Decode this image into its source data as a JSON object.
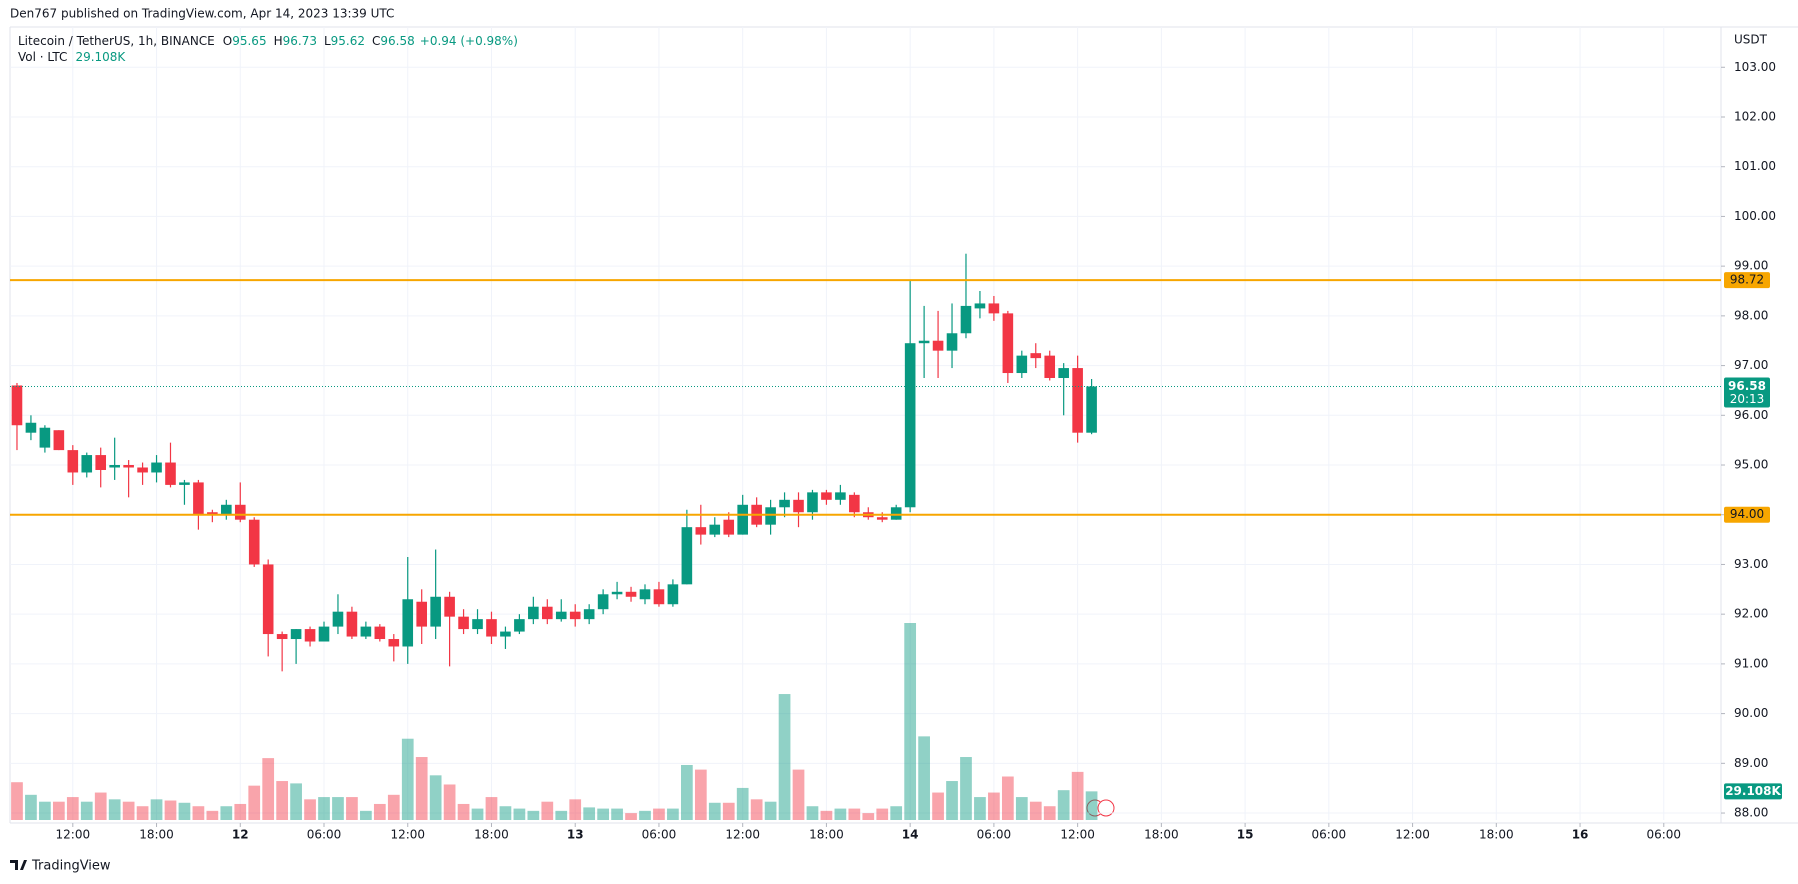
{
  "header": "Den767 published on TradingView.com, Apr 14, 2023 13:39 UTC",
  "footer": "TradingView",
  "chart_data": {
    "type": "candlestick",
    "title": "Litecoin / TetherUS, 1h, BINANCE",
    "ohlc_prefixes": [
      "O",
      "H",
      "L",
      "C"
    ],
    "change_label": "+0.94 (+0.98%)",
    "volume_title": "Vol · LTC",
    "volume_label": "29.108K",
    "currency": "USDT",
    "countdown": "20:13",
    "up_color": "#089981",
    "down_color": "#f23645",
    "level_color": "#f7a600",
    "grid": true,
    "x": [
      0,
      1,
      2,
      3,
      4,
      5,
      6,
      7,
      8,
      9,
      10,
      11,
      12,
      13,
      14,
      15,
      16,
      17,
      18,
      19,
      20,
      21,
      22,
      23,
      24,
      25,
      26,
      27,
      28,
      29,
      30,
      31,
      32,
      33,
      34,
      35,
      36,
      37,
      38,
      39,
      40,
      41,
      42,
      43,
      44,
      45,
      46,
      47,
      48,
      49,
      50,
      51,
      52,
      53,
      54,
      55,
      56,
      57,
      58,
      59,
      60,
      61,
      62,
      63,
      64,
      65,
      66,
      67,
      68,
      69,
      70,
      71,
      72,
      73,
      74,
      75,
      76,
      77
    ],
    "open": [
      96.6,
      95.65,
      95.35,
      95.7,
      95.3,
      94.85,
      95.2,
      94.95,
      95.0,
      94.95,
      94.85,
      95.05,
      94.6,
      94.65,
      94.05,
      94.0,
      94.2,
      93.9,
      93.0,
      91.6,
      91.5,
      91.7,
      91.45,
      91.75,
      92.05,
      91.55,
      91.75,
      91.5,
      91.35,
      92.25,
      91.75,
      92.35,
      91.95,
      91.7,
      91.9,
      91.55,
      91.65,
      91.9,
      92.15,
      91.9,
      92.05,
      91.9,
      92.1,
      92.4,
      92.45,
      92.3,
      92.5,
      92.2,
      92.6,
      93.75,
      93.6,
      93.9,
      93.6,
      94.2,
      93.8,
      94.15,
      94.3,
      94.05,
      94.45,
      94.3,
      94.4,
      94.05,
      93.95,
      93.9,
      94.15,
      97.45,
      97.5,
      97.3,
      97.65,
      98.15,
      98.25,
      98.05,
      96.85,
      97.25,
      97.2,
      96.75,
      96.95,
      95.65
    ],
    "high": [
      96.65,
      96.0,
      95.8,
      95.7,
      95.4,
      95.25,
      95.35,
      95.55,
      95.1,
      95.05,
      95.2,
      95.45,
      94.7,
      94.7,
      94.1,
      94.3,
      94.65,
      93.95,
      93.1,
      91.65,
      91.7,
      91.75,
      91.85,
      92.4,
      92.15,
      91.85,
      91.8,
      91.6,
      93.15,
      92.5,
      93.3,
      92.45,
      92.1,
      92.1,
      92.05,
      91.75,
      92.0,
      92.35,
      92.3,
      92.3,
      92.2,
      92.2,
      92.5,
      92.65,
      92.55,
      92.6,
      92.65,
      92.7,
      94.1,
      94.2,
      93.95,
      94.05,
      94.4,
      94.35,
      94.3,
      94.45,
      94.45,
      94.5,
      94.5,
      94.6,
      94.45,
      94.15,
      94.05,
      94.2,
      98.7,
      98.2,
      98.1,
      98.25,
      99.25,
      98.5,
      98.4,
      98.1,
      97.3,
      97.45,
      97.3,
      97.05,
      97.2,
      96.73
    ],
    "low": [
      95.3,
      95.5,
      95.25,
      95.3,
      94.6,
      94.75,
      94.55,
      94.7,
      94.35,
      94.6,
      94.65,
      94.55,
      94.2,
      93.7,
      93.85,
      93.9,
      93.85,
      92.95,
      91.15,
      90.85,
      91.0,
      91.35,
      91.45,
      91.6,
      91.5,
      91.5,
      91.45,
      91.05,
      91.0,
      91.4,
      91.5,
      90.95,
      91.6,
      91.6,
      91.4,
      91.3,
      91.6,
      91.8,
      91.8,
      91.85,
      91.75,
      91.8,
      92.0,
      92.3,
      92.25,
      92.2,
      92.15,
      92.15,
      92.6,
      93.4,
      93.55,
      93.55,
      93.6,
      93.75,
      93.6,
      93.95,
      93.75,
      93.9,
      94.2,
      94.2,
      93.95,
      93.9,
      93.85,
      93.9,
      94.05,
      96.75,
      96.75,
      96.95,
      97.55,
      97.95,
      97.9,
      96.65,
      96.75,
      96.95,
      96.7,
      96.0,
      95.45,
      95.62
    ],
    "close": [
      95.8,
      95.85,
      95.75,
      95.3,
      94.85,
      95.2,
      94.9,
      95.0,
      94.95,
      94.85,
      95.05,
      94.6,
      94.65,
      94.0,
      94.0,
      94.2,
      93.9,
      93.0,
      91.6,
      91.5,
      91.7,
      91.45,
      91.75,
      92.05,
      91.55,
      91.75,
      91.5,
      91.35,
      92.3,
      91.75,
      92.35,
      91.95,
      91.7,
      91.9,
      91.55,
      91.65,
      91.9,
      92.15,
      91.9,
      92.05,
      91.9,
      92.1,
      92.4,
      92.45,
      92.35,
      92.5,
      92.2,
      92.6,
      93.75,
      93.6,
      93.8,
      93.6,
      94.2,
      93.8,
      94.15,
      94.3,
      94.05,
      94.45,
      94.3,
      94.45,
      94.05,
      93.95,
      93.9,
      94.15,
      97.45,
      97.5,
      97.3,
      97.65,
      98.2,
      98.25,
      98.05,
      96.85,
      97.2,
      97.15,
      96.75,
      96.95,
      95.65,
      96.58
    ],
    "volume": [
      38400,
      25600,
      18600,
      18600,
      23300,
      18600,
      27900,
      21000,
      18600,
      14000,
      21000,
      19800,
      17500,
      14000,
      9300,
      14000,
      16300,
      34900,
      62900,
      39600,
      37200,
      21000,
      23300,
      23300,
      23300,
      9300,
      16300,
      25600,
      82600,
      64000,
      45400,
      36100,
      16300,
      11600,
      23300,
      14000,
      11600,
      9300,
      18600,
      9300,
      21000,
      12800,
      11600,
      11600,
      7000,
      9300,
      11600,
      11600,
      55900,
      51200,
      17500,
      17500,
      32600,
      21000,
      18600,
      128000,
      51200,
      14000,
      9300,
      11600,
      11600,
      7000,
      11600,
      14000,
      200200,
      85000,
      27900,
      39600,
      64000,
      23300,
      27900,
      44200,
      23300,
      18600,
      14000,
      30300,
      48900,
      29108
    ],
    "xlim": [
      -0.5,
      122.1
    ],
    "xticks": [
      {
        "value": 4,
        "label": "12:00"
      },
      {
        "value": 10,
        "label": "18:00"
      },
      {
        "value": 16,
        "label": "12"
      },
      {
        "value": 22,
        "label": "06:00"
      },
      {
        "value": 28,
        "label": "12:00"
      },
      {
        "value": 34,
        "label": "18:00"
      },
      {
        "value": 40,
        "label": "13"
      },
      {
        "value": 46,
        "label": "06:00"
      },
      {
        "value": 52,
        "label": "12:00"
      },
      {
        "value": 58,
        "label": "18:00"
      },
      {
        "value": 64,
        "label": "14"
      },
      {
        "value": 70,
        "label": "06:00"
      },
      {
        "value": 76,
        "label": "12:00"
      },
      {
        "value": 82,
        "label": "18:00"
      },
      {
        "value": 88,
        "label": "15"
      },
      {
        "value": 94,
        "label": "06:00"
      },
      {
        "value": 100,
        "label": "12:00"
      },
      {
        "value": 106,
        "label": "18:00"
      },
      {
        "value": 112,
        "label": "16"
      },
      {
        "value": 118,
        "label": "06:00"
      }
    ],
    "ylim": [
      87.86,
      103.81
    ],
    "yticks": [
      {
        "value": 88,
        "label": "88.00"
      },
      {
        "value": 89,
        "label": "89.00"
      },
      {
        "value": 90,
        "label": "90.00"
      },
      {
        "value": 91,
        "label": "91.00"
      },
      {
        "value": 92,
        "label": "92.00"
      },
      {
        "value": 93,
        "label": "93.00"
      },
      {
        "value": 94,
        "label": "94.00"
      },
      {
        "value": 95,
        "label": "95.00"
      },
      {
        "value": 96,
        "label": "96.00"
      },
      {
        "value": 97,
        "label": "97.00"
      },
      {
        "value": 98,
        "label": "98.00"
      },
      {
        "value": 99,
        "label": "99.00"
      },
      {
        "value": 100,
        "label": "100.00"
      },
      {
        "value": 101,
        "label": "101.00"
      },
      {
        "value": 102,
        "label": "102.00"
      },
      {
        "value": 103,
        "label": "103.00"
      }
    ],
    "levels": [
      {
        "value": 98.72,
        "label": "98.72"
      },
      {
        "value": 94,
        "label": "94.00"
      }
    ]
  }
}
